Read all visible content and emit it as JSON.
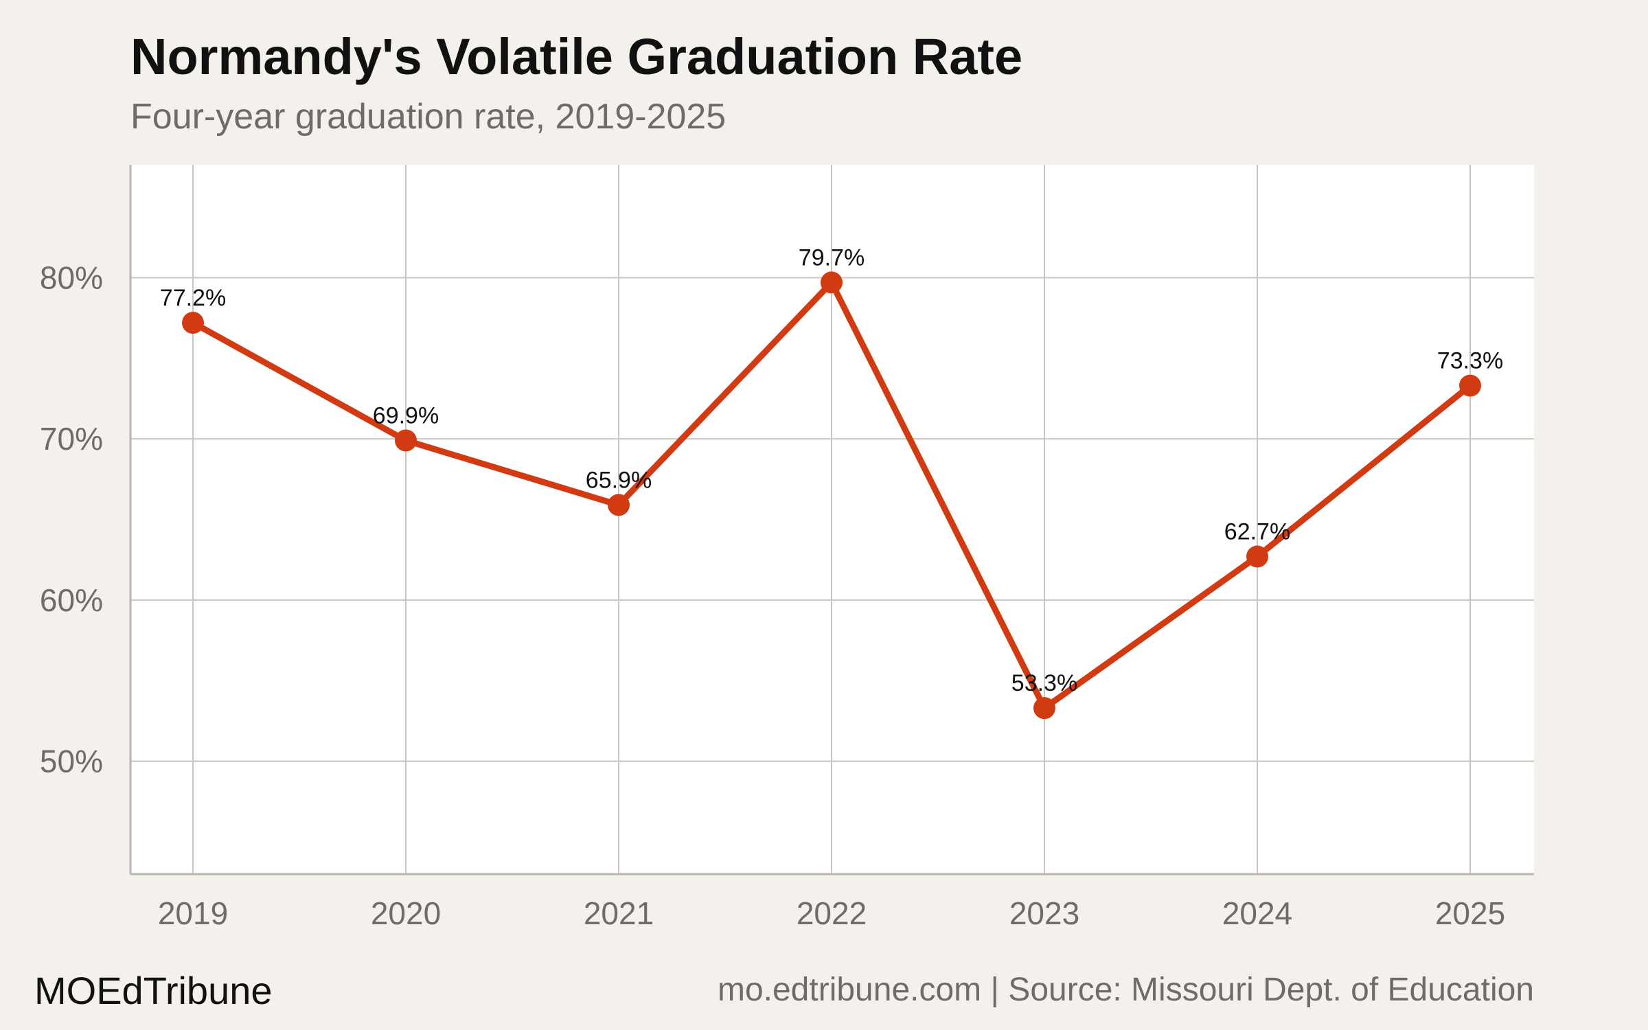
{
  "header": {
    "title": "Normandy's Volatile Graduation Rate",
    "subtitle": "Four-year graduation rate, 2019-2025"
  },
  "footer": {
    "brand": "MOEdTribune",
    "source": "mo.edtribune.com | Source: Missouri Dept. of Education"
  },
  "colors": {
    "line": "#d23a12",
    "background": "#f4f1ec",
    "plot_background": "#ffffff",
    "grid": "#c9c6bf"
  },
  "chart_data": {
    "type": "line",
    "title": "Normandy's Volatile Graduation Rate",
    "subtitle": "Four-year graduation rate, 2019-2025",
    "xlabel": "",
    "ylabel": "",
    "x": [
      "2019",
      "2020",
      "2021",
      "2022",
      "2023",
      "2024",
      "2025"
    ],
    "series": [
      {
        "values": [
          77.2,
          69.9,
          65.9,
          79.7,
          53.3,
          62.7,
          73.3
        ],
        "labels": [
          "77.2%",
          "69.9%",
          "65.9%",
          "79.7%",
          "53.3%",
          "62.7%",
          "73.3%"
        ]
      }
    ],
    "yticks": [
      50,
      60,
      70,
      80
    ],
    "ytick_labels": [
      "50%",
      "60%",
      "70%",
      "80%"
    ],
    "ylim": [
      43,
      87
    ],
    "grid": true,
    "legend": "none"
  }
}
